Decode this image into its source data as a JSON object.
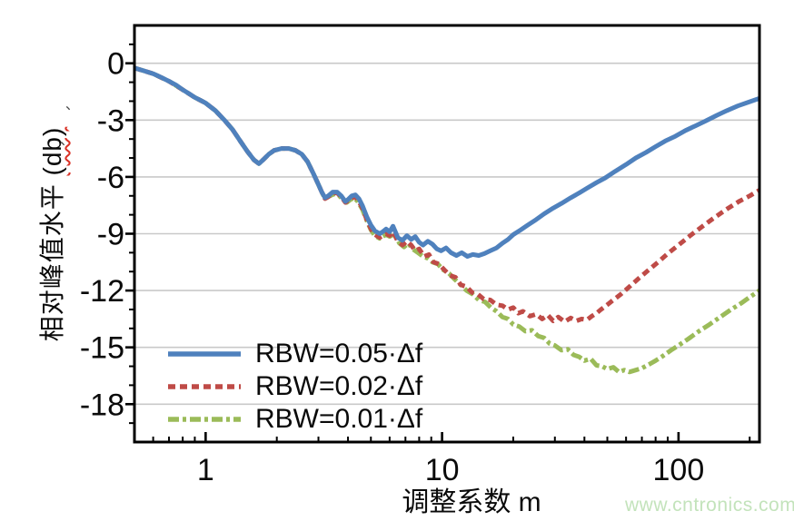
{
  "watermark": "www.cntronics.com",
  "decorations": {
    "stray_marks": [
      "、",
      "、"
    ],
    "unit_underline_color": "#d93025"
  },
  "axes": {
    "x_title": "调整系数 m",
    "y_title_main": "相对峰值水平 ",
    "y_title_unit": "(db)",
    "x_major_ticks": [
      {
        "v": 1,
        "label": "1"
      },
      {
        "v": 10,
        "label": "10"
      },
      {
        "v": 100,
        "label": "100"
      }
    ],
    "x_minor_ticks": [
      0.6,
      0.7,
      0.8,
      0.9,
      2,
      3,
      4,
      5,
      6,
      7,
      8,
      9,
      20,
      30,
      40,
      50,
      60,
      70,
      80,
      90,
      200
    ],
    "y_major_ticks": [
      {
        "v": 0,
        "label": "0"
      },
      {
        "v": -3,
        "label": "-3"
      },
      {
        "v": -6,
        "label": "-6"
      },
      {
        "v": -9,
        "label": "-9"
      },
      {
        "v": -12,
        "label": "-12"
      },
      {
        "v": -15,
        "label": "-15"
      },
      {
        "v": -18,
        "label": "-18"
      }
    ],
    "y_minor_ticks": [
      1,
      -1,
      -2,
      -4,
      -5,
      -7,
      -8,
      -10,
      -11,
      -13,
      -14,
      -16,
      -17,
      -19
    ]
  },
  "chart_data": {
    "type": "line",
    "title": "",
    "xlabel": "调整系数 m",
    "ylabel": "相对峰值水平 (db)",
    "x_scale": "log",
    "xlim": [
      0.5,
      220
    ],
    "ylim": [
      -20,
      2
    ],
    "grid": "horizontal",
    "legend_position": "lower-left",
    "grid_color": "#c9c9c9",
    "series": [
      {
        "name": "RBW=0.05·Δf",
        "color": "#4f81bd",
        "style": "solid",
        "points": [
          [
            0.5,
            -0.25
          ],
          [
            0.55,
            -0.4
          ],
          [
            0.6,
            -0.55
          ],
          [
            0.65,
            -0.75
          ],
          [
            0.7,
            -0.95
          ],
          [
            0.75,
            -1.15
          ],
          [
            0.8,
            -1.4
          ],
          [
            0.85,
            -1.6
          ],
          [
            0.9,
            -1.8
          ],
          [
            0.95,
            -1.95
          ],
          [
            1.0,
            -2.1
          ],
          [
            1.1,
            -2.5
          ],
          [
            1.2,
            -3.0
          ],
          [
            1.3,
            -3.5
          ],
          [
            1.4,
            -4.1
          ],
          [
            1.5,
            -4.65
          ],
          [
            1.6,
            -5.1
          ],
          [
            1.68,
            -5.3
          ],
          [
            1.75,
            -5.1
          ],
          [
            1.85,
            -4.8
          ],
          [
            1.95,
            -4.6
          ],
          [
            2.1,
            -4.5
          ],
          [
            2.25,
            -4.5
          ],
          [
            2.4,
            -4.6
          ],
          [
            2.55,
            -4.8
          ],
          [
            2.7,
            -5.2
          ],
          [
            2.85,
            -5.8
          ],
          [
            3.0,
            -6.4
          ],
          [
            3.1,
            -6.8
          ],
          [
            3.2,
            -7.1
          ],
          [
            3.3,
            -7.0
          ],
          [
            3.45,
            -6.8
          ],
          [
            3.6,
            -6.8
          ],
          [
            3.75,
            -7.0
          ],
          [
            3.9,
            -7.3
          ],
          [
            4.0,
            -7.2
          ],
          [
            4.15,
            -7.0
          ],
          [
            4.3,
            -6.95
          ],
          [
            4.45,
            -7.15
          ],
          [
            4.6,
            -7.5
          ],
          [
            4.8,
            -8.1
          ],
          [
            5.0,
            -8.55
          ],
          [
            5.2,
            -8.85
          ],
          [
            5.45,
            -9.0
          ],
          [
            5.6,
            -8.9
          ],
          [
            5.8,
            -8.75
          ],
          [
            6.0,
            -8.9
          ],
          [
            6.2,
            -8.6
          ],
          [
            6.5,
            -9.2
          ],
          [
            6.8,
            -9.35
          ],
          [
            7.1,
            -9.1
          ],
          [
            7.4,
            -9.3
          ],
          [
            7.7,
            -9.15
          ],
          [
            8.0,
            -9.45
          ],
          [
            8.3,
            -9.6
          ],
          [
            8.7,
            -9.4
          ],
          [
            9.1,
            -9.55
          ],
          [
            9.5,
            -9.8
          ],
          [
            9.9,
            -9.9
          ],
          [
            10.4,
            -9.75
          ],
          [
            10.9,
            -10.0
          ],
          [
            11.5,
            -10.15
          ],
          [
            12.1,
            -10.0
          ],
          [
            12.8,
            -10.2
          ],
          [
            13.5,
            -10.1
          ],
          [
            14.3,
            -10.15
          ],
          [
            15.1,
            -10.05
          ],
          [
            16,
            -9.9
          ],
          [
            17,
            -9.75
          ],
          [
            18,
            -9.5
          ],
          [
            19,
            -9.3
          ],
          [
            20,
            -9.05
          ],
          [
            21.5,
            -8.8
          ],
          [
            23,
            -8.55
          ],
          [
            25,
            -8.25
          ],
          [
            27,
            -7.95
          ],
          [
            29.5,
            -7.65
          ],
          [
            32,
            -7.4
          ],
          [
            35,
            -7.1
          ],
          [
            38,
            -6.85
          ],
          [
            41,
            -6.6
          ],
          [
            45,
            -6.3
          ],
          [
            49,
            -6.05
          ],
          [
            54,
            -5.7
          ],
          [
            60,
            -5.35
          ],
          [
            66,
            -5.0
          ],
          [
            73,
            -4.7
          ],
          [
            80,
            -4.4
          ],
          [
            88,
            -4.1
          ],
          [
            97,
            -3.85
          ],
          [
            107,
            -3.55
          ],
          [
            118,
            -3.3
          ],
          [
            130,
            -3.05
          ],
          [
            145,
            -2.75
          ],
          [
            160,
            -2.5
          ],
          [
            178,
            -2.25
          ],
          [
            198,
            -2.05
          ],
          [
            220,
            -1.85
          ]
        ]
      },
      {
        "name": "RBW=0.02·Δf",
        "color": "#bf4b47",
        "style": "dashed",
        "points": [
          [
            0.5,
            -0.25
          ],
          [
            0.6,
            -0.55
          ],
          [
            0.7,
            -0.95
          ],
          [
            0.8,
            -1.4
          ],
          [
            0.9,
            -1.8
          ],
          [
            1.0,
            -2.1
          ],
          [
            1.1,
            -2.5
          ],
          [
            1.2,
            -3.0
          ],
          [
            1.3,
            -3.5
          ],
          [
            1.4,
            -4.1
          ],
          [
            1.5,
            -4.65
          ],
          [
            1.6,
            -5.1
          ],
          [
            1.68,
            -5.3
          ],
          [
            1.75,
            -5.1
          ],
          [
            1.85,
            -4.8
          ],
          [
            1.95,
            -4.6
          ],
          [
            2.1,
            -4.5
          ],
          [
            2.25,
            -4.5
          ],
          [
            2.4,
            -4.6
          ],
          [
            2.55,
            -4.8
          ],
          [
            2.7,
            -5.2
          ],
          [
            2.85,
            -5.8
          ],
          [
            3.0,
            -6.4
          ],
          [
            3.1,
            -6.8
          ],
          [
            3.2,
            -7.15
          ],
          [
            3.3,
            -7.05
          ],
          [
            3.45,
            -6.85
          ],
          [
            3.6,
            -6.85
          ],
          [
            3.75,
            -7.05
          ],
          [
            3.9,
            -7.35
          ],
          [
            4.0,
            -7.25
          ],
          [
            4.15,
            -7.1
          ],
          [
            4.3,
            -7.05
          ],
          [
            4.45,
            -7.3
          ],
          [
            4.6,
            -7.65
          ],
          [
            4.8,
            -8.25
          ],
          [
            5.0,
            -8.75
          ],
          [
            5.2,
            -9.05
          ],
          [
            5.45,
            -9.2
          ],
          [
            5.6,
            -9.1
          ],
          [
            5.8,
            -9.0
          ],
          [
            6.0,
            -9.1
          ],
          [
            6.2,
            -8.9
          ],
          [
            6.5,
            -9.4
          ],
          [
            6.8,
            -9.6
          ],
          [
            7.1,
            -9.4
          ],
          [
            7.4,
            -9.6
          ],
          [
            7.7,
            -9.9
          ],
          [
            8.0,
            -9.8
          ],
          [
            8.4,
            -10.2
          ],
          [
            8.8,
            -10.1
          ],
          [
            9.2,
            -10.5
          ],
          [
            9.7,
            -10.6
          ],
          [
            10.2,
            -10.9
          ],
          [
            10.8,
            -11.2
          ],
          [
            11.4,
            -11.3
          ],
          [
            12,
            -11.7
          ],
          [
            12.7,
            -11.8
          ],
          [
            13.4,
            -12.1
          ],
          [
            14.2,
            -12.2
          ],
          [
            15,
            -12.45
          ],
          [
            16,
            -12.5
          ],
          [
            17,
            -12.75
          ],
          [
            18,
            -12.8
          ],
          [
            19,
            -13.0
          ],
          [
            20,
            -12.9
          ],
          [
            21,
            -13.2
          ],
          [
            22,
            -13.1
          ],
          [
            23.5,
            -13.35
          ],
          [
            25,
            -13.25
          ],
          [
            26.5,
            -13.5
          ],
          [
            28,
            -13.3
          ],
          [
            29.5,
            -13.6
          ],
          [
            31,
            -13.4
          ],
          [
            33,
            -13.65
          ],
          [
            35,
            -13.45
          ],
          [
            37,
            -13.6
          ],
          [
            39,
            -13.5
          ],
          [
            41,
            -13.55
          ],
          [
            43,
            -13.35
          ],
          [
            45,
            -13.2
          ],
          [
            47,
            -13.0
          ],
          [
            50,
            -12.75
          ],
          [
            53,
            -12.5
          ],
          [
            57,
            -12.2
          ],
          [
            62,
            -11.8
          ],
          [
            68,
            -11.35
          ],
          [
            75,
            -10.9
          ],
          [
            82,
            -10.5
          ],
          [
            90,
            -10.05
          ],
          [
            100,
            -9.6
          ],
          [
            112,
            -9.1
          ],
          [
            125,
            -8.65
          ],
          [
            140,
            -8.2
          ],
          [
            160,
            -7.7
          ],
          [
            180,
            -7.3
          ],
          [
            200,
            -7.0
          ],
          [
            220,
            -6.7
          ]
        ]
      },
      {
        "name": "RBW=0.01·Δf",
        "color": "#9bbb59",
        "style": "dashdot",
        "points": [
          [
            0.5,
            -0.25
          ],
          [
            0.6,
            -0.55
          ],
          [
            0.7,
            -0.95
          ],
          [
            0.8,
            -1.4
          ],
          [
            0.9,
            -1.8
          ],
          [
            1.0,
            -2.1
          ],
          [
            1.1,
            -2.5
          ],
          [
            1.2,
            -3.0
          ],
          [
            1.3,
            -3.5
          ],
          [
            1.4,
            -4.1
          ],
          [
            1.5,
            -4.65
          ],
          [
            1.6,
            -5.1
          ],
          [
            1.68,
            -5.3
          ],
          [
            1.75,
            -5.1
          ],
          [
            1.85,
            -4.8
          ],
          [
            1.95,
            -4.6
          ],
          [
            2.1,
            -4.5
          ],
          [
            2.25,
            -4.5
          ],
          [
            2.4,
            -4.6
          ],
          [
            2.55,
            -4.8
          ],
          [
            2.7,
            -5.2
          ],
          [
            2.85,
            -5.8
          ],
          [
            3.0,
            -6.4
          ],
          [
            3.1,
            -6.8
          ],
          [
            3.2,
            -7.15
          ],
          [
            3.35,
            -7.0
          ],
          [
            3.5,
            -6.9
          ],
          [
            3.65,
            -6.95
          ],
          [
            3.8,
            -7.2
          ],
          [
            3.95,
            -7.35
          ],
          [
            4.1,
            -7.2
          ],
          [
            4.25,
            -7.1
          ],
          [
            4.4,
            -7.3
          ],
          [
            4.6,
            -7.7
          ],
          [
            4.8,
            -8.3
          ],
          [
            5.0,
            -8.8
          ],
          [
            5.2,
            -9.1
          ],
          [
            5.45,
            -9.25
          ],
          [
            5.6,
            -9.15
          ],
          [
            5.8,
            -9.05
          ],
          [
            6.0,
            -9.15
          ],
          [
            6.3,
            -9.0
          ],
          [
            6.6,
            -9.5
          ],
          [
            6.9,
            -9.7
          ],
          [
            7.2,
            -9.5
          ],
          [
            7.5,
            -9.8
          ],
          [
            7.9,
            -10.0
          ],
          [
            8.3,
            -10.2
          ],
          [
            8.7,
            -10.3
          ],
          [
            9.1,
            -10.5
          ],
          [
            9.6,
            -10.6
          ],
          [
            10.1,
            -10.9
          ],
          [
            10.7,
            -11.1
          ],
          [
            11.3,
            -11.4
          ],
          [
            12,
            -11.7
          ],
          [
            12.7,
            -12.0
          ],
          [
            13.5,
            -12.2
          ],
          [
            14.3,
            -12.5
          ],
          [
            15.2,
            -12.6
          ],
          [
            16.1,
            -12.9
          ],
          [
            17,
            -13.1
          ],
          [
            18,
            -13.4
          ],
          [
            19,
            -13.5
          ],
          [
            20,
            -13.8
          ],
          [
            21.2,
            -13.9
          ],
          [
            22.5,
            -14.15
          ],
          [
            24,
            -14.1
          ],
          [
            25.5,
            -14.4
          ],
          [
            27,
            -14.5
          ],
          [
            28.5,
            -14.8
          ],
          [
            30,
            -14.9
          ],
          [
            32,
            -15.15
          ],
          [
            34,
            -15.1
          ],
          [
            36,
            -15.4
          ],
          [
            38,
            -15.5
          ],
          [
            40,
            -15.7
          ],
          [
            42.5,
            -15.6
          ],
          [
            45,
            -15.95
          ],
          [
            47.5,
            -16.0
          ],
          [
            50,
            -16.15
          ],
          [
            53,
            -16.05
          ],
          [
            56,
            -16.3
          ],
          [
            59,
            -16.2
          ],
          [
            62,
            -16.3
          ],
          [
            66,
            -16.2
          ],
          [
            70,
            -16.1
          ],
          [
            75,
            -15.9
          ],
          [
            80,
            -15.7
          ],
          [
            86,
            -15.45
          ],
          [
            93,
            -15.15
          ],
          [
            100,
            -14.9
          ],
          [
            110,
            -14.55
          ],
          [
            122,
            -14.15
          ],
          [
            135,
            -13.8
          ],
          [
            150,
            -13.4
          ],
          [
            167,
            -13.0
          ],
          [
            185,
            -12.65
          ],
          [
            200,
            -12.35
          ],
          [
            220,
            -12.0
          ]
        ]
      }
    ]
  }
}
